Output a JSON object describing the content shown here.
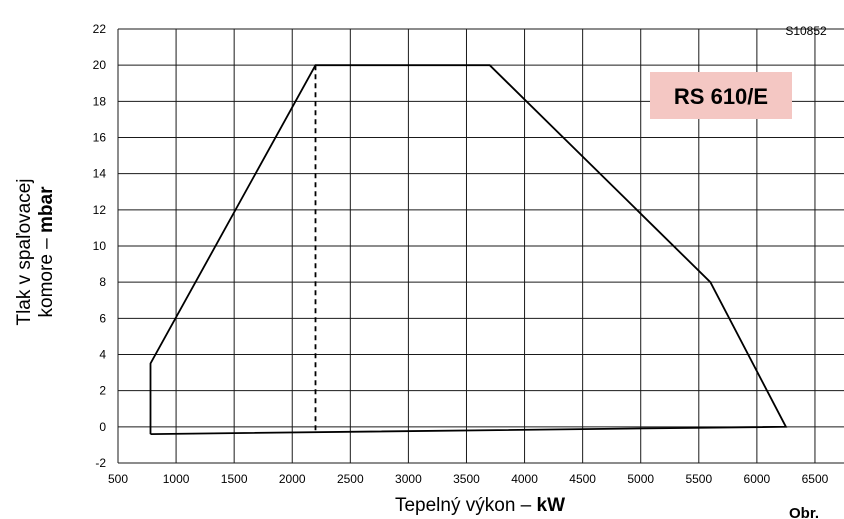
{
  "chart_data": {
    "type": "line",
    "title": "",
    "xlabel": {
      "text": "Tepelný výkon – ",
      "unit": "kW"
    },
    "ylabel": {
      "line1": "Tlak v spaľovacej",
      "line2_text": "komore – ",
      "line2_unit": "mbar"
    },
    "xlim": [
      500,
      6750
    ],
    "ylim": [
      -2,
      22
    ],
    "x_ticks": [
      500,
      1000,
      1500,
      2000,
      2500,
      3000,
      3500,
      4000,
      4500,
      5000,
      5500,
      6000,
      6500
    ],
    "y_ticks": [
      -2,
      0,
      2,
      4,
      6,
      8,
      10,
      12,
      14,
      16,
      18,
      20,
      22
    ],
    "grid": true,
    "series": [
      {
        "name": "",
        "style": "solid",
        "color": "#000000",
        "points": [
          {
            "x": 780,
            "y": -0.4
          },
          {
            "x": 780,
            "y": 3.5
          },
          {
            "x": 2200,
            "y": 20
          },
          {
            "x": 3700,
            "y": 20
          },
          {
            "x": 5600,
            "y": 8
          },
          {
            "x": 6250,
            "y": 0
          },
          {
            "x": 780,
            "y": -0.4
          }
        ]
      },
      {
        "name": "",
        "style": "dashed",
        "color": "#000000",
        "points": [
          {
            "x": 2200,
            "y": 20
          },
          {
            "x": 2200,
            "y": -0.25
          }
        ]
      }
    ],
    "annotations": {
      "model_badge": {
        "text": "RS 610/E",
        "background": "#f4c7c3"
      },
      "code": "S10852",
      "figure_label": "Obr."
    }
  }
}
